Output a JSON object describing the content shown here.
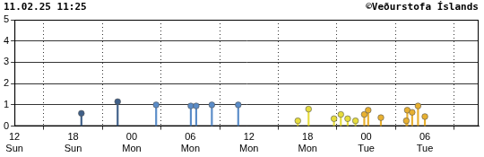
{
  "chart_data": {
    "type": "stem",
    "title": "11.02.25 11:25",
    "annotations": [
      "©Veðurstofa Íslands"
    ],
    "marker": "circle",
    "grid": true,
    "x": [
      6.85,
      10.56,
      14.5,
      18.05,
      18.6,
      20.2,
      22.9,
      29.0,
      30.1,
      32.7,
      33.4,
      34.1,
      34.9,
      35.8,
      36.2,
      37.5,
      40.1,
      40.2,
      40.7,
      41.3,
      42.0
    ],
    "values": [
      0.6,
      1.15,
      1.0,
      0.95,
      0.95,
      1.0,
      1.0,
      0.25,
      0.8,
      0.35,
      0.55,
      0.35,
      0.25,
      0.55,
      0.75,
      0.4,
      0.25,
      0.75,
      0.65,
      0.95,
      0.45
    ],
    "colors": [
      "#3f5f88",
      "#3f5f88",
      "#5a8cc8",
      "#5a8cc8",
      "#5a8cc8",
      "#5a8cc8",
      "#5a8cc8",
      "#e6dc3c",
      "#e6dc3c",
      "#e6dc3c",
      "#e6dc3c",
      "#e6dc3c",
      "#e6dc3c",
      "#e8b030",
      "#e8b030",
      "#e8b030",
      "#e8b030",
      "#e8b030",
      "#e8b030",
      "#e8b030",
      "#e8b030"
    ],
    "xlim": [
      0,
      47.5
    ],
    "xticks": [
      {
        "value": 0,
        "label": "12 Sun"
      },
      {
        "value": 6,
        "label": "18 Sun"
      },
      {
        "value": 12,
        "label": "00 Mon"
      },
      {
        "value": 18,
        "label": "06 Mon"
      },
      {
        "value": 24,
        "label": "12 Mon"
      },
      {
        "value": 30,
        "label": "18 Mon"
      },
      {
        "value": 36,
        "label": "00 Tue"
      },
      {
        "value": 42,
        "label": "06 Tue"
      }
    ],
    "ylim": [
      0,
      5
    ],
    "yticks": [
      0,
      1,
      2,
      3,
      4,
      5
    ]
  }
}
